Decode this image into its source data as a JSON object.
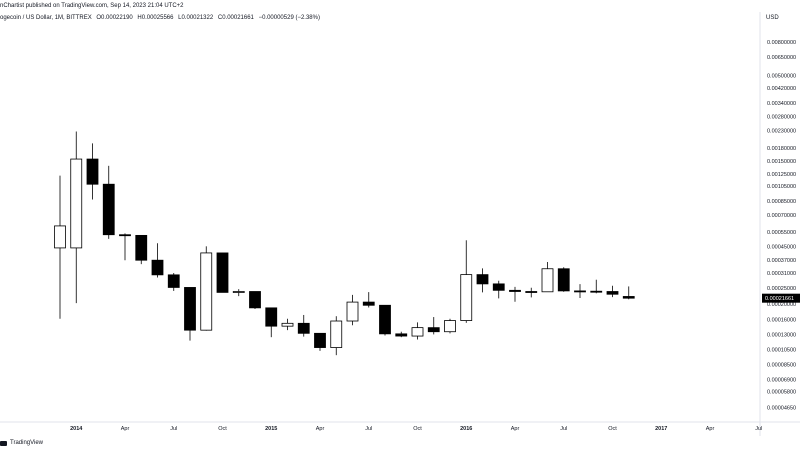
{
  "header": {
    "publisher": "nChartist published on TradingView.com, Sep 14, 2023 21:04 UTC+2"
  },
  "legend": {
    "symbol": "ogecoin / US Dollar, 1M, BITTREX",
    "open": "O0.00022190",
    "high": "H0.00025566",
    "low": "L0.00021322",
    "close": "C0.00021661",
    "change": "−0.00000529 (−2.38%)"
  },
  "axis": {
    "currency": "USD",
    "last_price_label": "0.00021661"
  },
  "footer": {
    "brand": "TradingView"
  },
  "colors": {
    "up_fill": "#ffffff",
    "down_fill": "#000000",
    "wick": "#000000",
    "price_tag_bg": "#000000",
    "price_tag_text": "#ffffff",
    "axis_border": "#e0e3eb"
  },
  "chart_data": {
    "type": "candlestick",
    "y_scale": "log",
    "ylim": [
      4e-05,
      0.0095
    ],
    "x_labels": [
      "2014",
      "Apr",
      "Jul",
      "Oct",
      "2015",
      "Apr",
      "Jul",
      "Oct",
      "2016",
      "Apr",
      "Jul",
      "Oct",
      "2017",
      "Apr",
      "Jul"
    ],
    "y_tick_labels": [
      "0.00800000",
      "0.00650000",
      "0.00500000",
      "0.00420000",
      "0.00340000",
      "0.00280000",
      "0.00230000",
      "0.00180000",
      "0.00150000",
      "0.00125000",
      "0.00105000",
      "0.00085000",
      "0.00070000",
      "0.00055000",
      "0.00045000",
      "0.00037000",
      "0.00031000",
      "0.00025000",
      "0.00020000",
      "0.00016000",
      "0.00013000",
      "0.00010500",
      "0.00008500",
      "0.00006900",
      "0.00005800",
      "0.00004650"
    ],
    "candles": [
      {
        "date": "2013-12",
        "open": 0.00044,
        "high": 0.00122,
        "low": 0.000162,
        "close": 0.0006
      },
      {
        "date": "2014-01",
        "open": 0.00044,
        "high": 0.00227,
        "low": 0.000202,
        "close": 0.00154
      },
      {
        "date": "2014-02",
        "open": 0.00154,
        "high": 0.00192,
        "low": 0.00087,
        "close": 0.00108
      },
      {
        "date": "2014-03",
        "open": 0.00108,
        "high": 0.0014,
        "low": 0.0005,
        "close": 0.00053
      },
      {
        "date": "2014-04",
        "open": 0.00053,
        "high": 0.00054,
        "low": 0.00037,
        "close": 0.000525
      },
      {
        "date": "2014-05",
        "open": 0.000525,
        "high": 0.000525,
        "low": 0.00035,
        "close": 0.00037
      },
      {
        "date": "2014-06",
        "open": 0.00037,
        "high": 0.00047,
        "low": 0.00029,
        "close": 0.000301
      },
      {
        "date": "2014-07",
        "open": 0.000301,
        "high": 0.000309,
        "low": 0.00024,
        "close": 0.000252
      },
      {
        "date": "2014-08",
        "open": 0.000252,
        "high": 0.000252,
        "low": 0.000119,
        "close": 0.000138
      },
      {
        "date": "2014-09",
        "open": 0.000138,
        "high": 0.00045,
        "low": 0.000137,
        "close": 0.00041
      },
      {
        "date": "2014-10",
        "open": 0.00041,
        "high": 0.00041,
        "low": 0.000235,
        "close": 0.000235
      },
      {
        "date": "2014-11",
        "open": 0.000235,
        "high": 0.000246,
        "low": 0.000223,
        "close": 0.000238
      },
      {
        "date": "2014-12",
        "open": 0.000238,
        "high": 0.000238,
        "low": 0.000186,
        "close": 0.000189
      },
      {
        "date": "2015-01",
        "open": 0.000189,
        "high": 0.000189,
        "low": 0.000125,
        "close": 0.000146
      },
      {
        "date": "2015-02",
        "open": 0.000146,
        "high": 0.000162,
        "low": 0.000138,
        "close": 0.000152
      },
      {
        "date": "2015-03",
        "open": 0.000152,
        "high": 0.000171,
        "low": 0.000126,
        "close": 0.000132
      },
      {
        "date": "2015-04",
        "open": 0.000132,
        "high": 0.000132,
        "low": 0.000103,
        "close": 0.000108
      },
      {
        "date": "2015-05",
        "open": 0.000108,
        "high": 0.000168,
        "low": 9.7e-05,
        "close": 0.000157
      },
      {
        "date": "2015-06",
        "open": 0.000157,
        "high": 0.000227,
        "low": 0.000148,
        "close": 0.000205
      },
      {
        "date": "2015-07",
        "open": 0.000205,
        "high": 0.000236,
        "low": 0.00019,
        "close": 0.000196
      },
      {
        "date": "2015-08",
        "open": 0.000196,
        "high": 0.000196,
        "low": 0.000128,
        "close": 0.000131
      },
      {
        "date": "2015-09",
        "open": 0.000131,
        "high": 0.000135,
        "low": 0.000125,
        "close": 0.000127
      },
      {
        "date": "2015-10",
        "open": 0.000127,
        "high": 0.000154,
        "low": 0.000121,
        "close": 0.000143
      },
      {
        "date": "2015-11",
        "open": 0.000143,
        "high": 0.000166,
        "low": 0.00013,
        "close": 0.000135
      },
      {
        "date": "2015-12",
        "open": 0.000135,
        "high": 0.000162,
        "low": 0.000132,
        "close": 0.000158
      },
      {
        "date": "2016-01",
        "open": 0.000158,
        "high": 0.00049,
        "low": 0.000153,
        "close": 0.000302
      },
      {
        "date": "2016-02",
        "open": 0.000302,
        "high": 0.00033,
        "low": 0.000235,
        "close": 0.000265
      },
      {
        "date": "2016-03",
        "open": 0.000265,
        "high": 0.000277,
        "low": 0.000216,
        "close": 0.000242
      },
      {
        "date": "2016-04",
        "open": 0.000242,
        "high": 0.000254,
        "low": 0.000206,
        "close": 0.000238
      },
      {
        "date": "2016-05",
        "open": 0.000238,
        "high": 0.000251,
        "low": 0.000219,
        "close": 0.000237
      },
      {
        "date": "2016-06",
        "open": 0.000237,
        "high": 0.000361,
        "low": 0.000237,
        "close": 0.000328
      },
      {
        "date": "2016-07",
        "open": 0.000328,
        "high": 0.000335,
        "low": 0.000237,
        "close": 0.00024
      },
      {
        "date": "2016-08",
        "open": 0.00024,
        "high": 0.000264,
        "low": 0.000217,
        "close": 0.000239
      },
      {
        "date": "2016-09",
        "open": 0.000239,
        "high": 0.000281,
        "low": 0.000232,
        "close": 0.000238
      },
      {
        "date": "2016-10",
        "open": 0.000238,
        "high": 0.000258,
        "low": 0.00022,
        "close": 0.000229
      },
      {
        "date": "2016-11",
        "open": 0.0002219,
        "high": 0.00025566,
        "low": 0.00021322,
        "close": 0.00021661
      }
    ]
  }
}
